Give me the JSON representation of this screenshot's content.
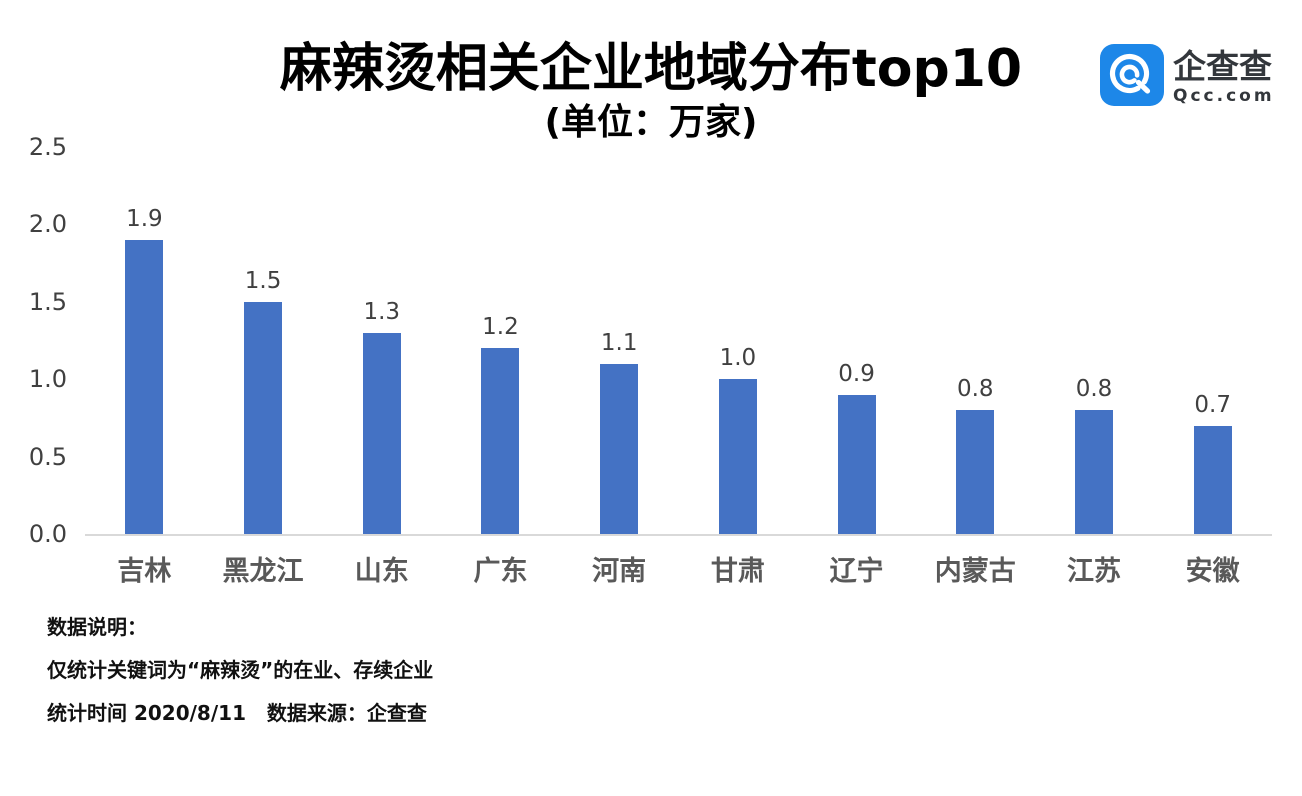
{
  "title": "麻辣烫相关企业地域分布top10",
  "subtitle": "(单位：万家)",
  "logo": {
    "brand": "企查查",
    "domain": "Qcc.com",
    "icon_color": "#1d87e8",
    "text_color": "#33373c"
  },
  "chart_data": {
    "type": "bar",
    "title": "麻辣烫相关企业地域分布top10",
    "subtitle": "(单位：万家)",
    "categories": [
      "吉林",
      "黑龙江",
      "山东",
      "广东",
      "河南",
      "甘肃",
      "辽宁",
      "内蒙古",
      "江苏",
      "安徽"
    ],
    "values": [
      1.9,
      1.5,
      1.3,
      1.2,
      1.1,
      1.0,
      0.9,
      0.8,
      0.8,
      0.7
    ],
    "data_labels": [
      "1.9",
      "1.5",
      "1.3",
      "1.2",
      "1.1",
      "1.0",
      "0.9",
      "0.8",
      "0.8",
      "0.7"
    ],
    "xlabel": "",
    "ylabel": "",
    "ylim": [
      0,
      2.5
    ],
    "yticks": [
      "0.0",
      "0.5",
      "1.0",
      "1.5",
      "2.0",
      "2.5"
    ],
    "bar_color": "#4472C4",
    "axis_line_color": "#d9d9d9",
    "grid": false,
    "legend": "none"
  },
  "notes": {
    "heading": "数据说明：",
    "line1": "仅统计关键词为“麻辣烫”的在业、存续企业",
    "line2": "统计时间 2020/8/11   数据来源：企查查"
  }
}
